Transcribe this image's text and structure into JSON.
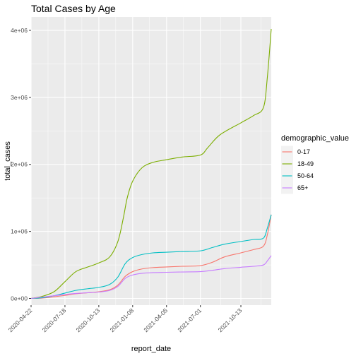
{
  "chart_data": {
    "type": "line",
    "title": "Total Cases by Age",
    "xlabel": "report_date",
    "ylabel": "total_cases",
    "legend_title": "demographic_value",
    "legend_position": "right",
    "grid": true,
    "xlim": [
      "2020-04-22",
      "2021-12-30"
    ],
    "ylim": [
      -100000,
      4200000
    ],
    "x_ticks": [
      {
        "date": "2020-04-22",
        "label": "2020-04-22"
      },
      {
        "date": "2020-07-18",
        "label": "2020-07-18"
      },
      {
        "date": "2020-10-13",
        "label": "2020-10-13"
      },
      {
        "date": "2021-01-08",
        "label": "2021-01-08"
      },
      {
        "date": "2021-04-05",
        "label": "2021-04-05"
      },
      {
        "date": "2021-07-01",
        "label": "2021-07-01"
      },
      {
        "date": "2021-10-13",
        "label": "2021-10-13"
      }
    ],
    "y_ticks": [
      {
        "value": 0,
        "label": "0e+00"
      },
      {
        "value": 1000000,
        "label": "1e+06"
      },
      {
        "value": 2000000,
        "label": "2e+06"
      },
      {
        "value": 3000000,
        "label": "3e+06"
      },
      {
        "value": 4000000,
        "label": "4e+06"
      }
    ],
    "series": [
      {
        "name": "0-17",
        "color": "#F8766D",
        "points": [
          [
            "2020-04-22",
            0
          ],
          [
            "2020-05-20",
            5000
          ],
          [
            "2020-06-20",
            25000
          ],
          [
            "2020-07-18",
            45000
          ],
          [
            "2020-08-15",
            70000
          ],
          [
            "2020-09-15",
            85000
          ],
          [
            "2020-10-13",
            100000
          ],
          [
            "2020-11-10",
            130000
          ],
          [
            "2020-12-01",
            200000
          ],
          [
            "2020-12-20",
            330000
          ],
          [
            "2021-01-08",
            400000
          ],
          [
            "2021-02-01",
            440000
          ],
          [
            "2021-03-01",
            460000
          ],
          [
            "2021-04-05",
            470000
          ],
          [
            "2021-05-15",
            480000
          ],
          [
            "2021-07-01",
            490000
          ],
          [
            "2021-08-01",
            540000
          ],
          [
            "2021-09-01",
            620000
          ],
          [
            "2021-10-13",
            680000
          ],
          [
            "2021-11-15",
            730000
          ],
          [
            "2021-12-10",
            780000
          ],
          [
            "2021-12-20",
            950000
          ],
          [
            "2021-12-30",
            1250000
          ]
        ]
      },
      {
        "name": "18-49",
        "color": "#7CAE00",
        "points": [
          [
            "2020-04-22",
            0
          ],
          [
            "2020-05-20",
            30000
          ],
          [
            "2020-06-20",
            100000
          ],
          [
            "2020-07-18",
            250000
          ],
          [
            "2020-08-15",
            400000
          ],
          [
            "2020-09-15",
            470000
          ],
          [
            "2020-10-13",
            530000
          ],
          [
            "2020-11-10",
            620000
          ],
          [
            "2020-12-01",
            850000
          ],
          [
            "2020-12-15",
            1200000
          ],
          [
            "2020-12-25",
            1500000
          ],
          [
            "2021-01-08",
            1750000
          ],
          [
            "2021-02-01",
            1950000
          ],
          [
            "2021-03-01",
            2030000
          ],
          [
            "2021-04-05",
            2070000
          ],
          [
            "2021-05-15",
            2110000
          ],
          [
            "2021-07-01",
            2140000
          ],
          [
            "2021-07-20",
            2250000
          ],
          [
            "2021-08-20",
            2440000
          ],
          [
            "2021-10-13",
            2620000
          ],
          [
            "2021-11-15",
            2730000
          ],
          [
            "2021-12-10",
            2850000
          ],
          [
            "2021-12-20",
            3300000
          ],
          [
            "2021-12-30",
            4020000
          ]
        ]
      },
      {
        "name": "50-64",
        "color": "#00BFC4",
        "points": [
          [
            "2020-04-22",
            0
          ],
          [
            "2020-05-20",
            10000
          ],
          [
            "2020-06-20",
            40000
          ],
          [
            "2020-07-18",
            80000
          ],
          [
            "2020-08-15",
            120000
          ],
          [
            "2020-09-15",
            145000
          ],
          [
            "2020-10-13",
            165000
          ],
          [
            "2020-11-10",
            210000
          ],
          [
            "2020-12-01",
            320000
          ],
          [
            "2020-12-20",
            520000
          ],
          [
            "2021-01-08",
            610000
          ],
          [
            "2021-02-01",
            655000
          ],
          [
            "2021-03-01",
            680000
          ],
          [
            "2021-04-05",
            690000
          ],
          [
            "2021-05-15",
            700000
          ],
          [
            "2021-07-01",
            710000
          ],
          [
            "2021-08-01",
            760000
          ],
          [
            "2021-09-01",
            810000
          ],
          [
            "2021-10-13",
            850000
          ],
          [
            "2021-11-15",
            880000
          ],
          [
            "2021-12-10",
            900000
          ],
          [
            "2021-12-20",
            1050000
          ],
          [
            "2021-12-30",
            1250000
          ]
        ]
      },
      {
        "name": "65+",
        "color": "#C77CFF",
        "points": [
          [
            "2020-04-22",
            0
          ],
          [
            "2020-05-20",
            20000
          ],
          [
            "2020-06-20",
            40000
          ],
          [
            "2020-07-18",
            60000
          ],
          [
            "2020-08-15",
            75000
          ],
          [
            "2020-09-15",
            85000
          ],
          [
            "2020-10-13",
            95000
          ],
          [
            "2020-11-10",
            120000
          ],
          [
            "2020-12-01",
            180000
          ],
          [
            "2020-12-20",
            300000
          ],
          [
            "2021-01-08",
            350000
          ],
          [
            "2021-02-01",
            375000
          ],
          [
            "2021-03-01",
            385000
          ],
          [
            "2021-04-05",
            390000
          ],
          [
            "2021-05-15",
            395000
          ],
          [
            "2021-07-01",
            400000
          ],
          [
            "2021-08-01",
            420000
          ],
          [
            "2021-09-01",
            445000
          ],
          [
            "2021-10-13",
            465000
          ],
          [
            "2021-11-15",
            480000
          ],
          [
            "2021-12-10",
            500000
          ],
          [
            "2021-12-20",
            560000
          ],
          [
            "2021-12-30",
            640000
          ]
        ]
      }
    ]
  }
}
